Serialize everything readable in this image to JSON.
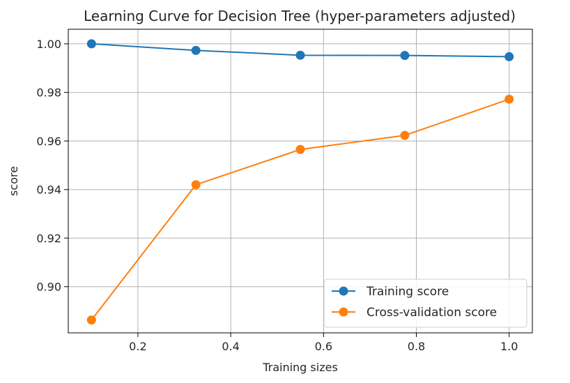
{
  "chart_data": {
    "type": "line",
    "title": "Learning Curve for Decision Tree (hyper-parameters adjusted)",
    "xlabel": "Training sizes",
    "ylabel": "score",
    "xlim": [
      0.05,
      1.05
    ],
    "ylim": [
      0.881,
      1.006
    ],
    "xticks": [
      0.2,
      0.4,
      0.6,
      0.8,
      1.0
    ],
    "xtick_labels": [
      "0.2",
      "0.4",
      "0.6",
      "0.8",
      "1.0"
    ],
    "yticks": [
      0.9,
      0.92,
      0.94,
      0.96,
      0.98,
      1.0
    ],
    "ytick_labels": [
      "0.90",
      "0.92",
      "0.94",
      "0.96",
      "0.98",
      "1.00"
    ],
    "grid": true,
    "legend_position": "lower-right",
    "x": [
      0.1,
      0.325,
      0.55,
      0.775,
      1.0
    ],
    "series": [
      {
        "name": "Training score",
        "color": "#1f77b4",
        "values": [
          1.0,
          0.9973,
          0.9953,
          0.9952,
          0.9947
        ]
      },
      {
        "name": "Cross-validation score",
        "color": "#ff7f0e",
        "values": [
          0.8863,
          0.942,
          0.9565,
          0.9623,
          0.9772
        ]
      }
    ]
  }
}
